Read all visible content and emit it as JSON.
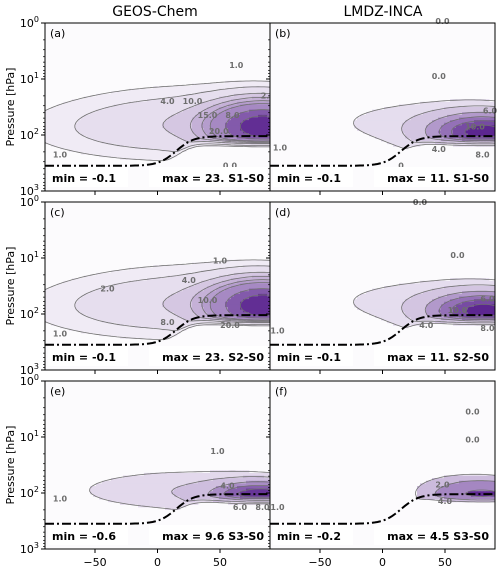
{
  "chart_data": {
    "type": "contour",
    "column_titles": [
      "GEOS-Chem",
      "LMDZ-INCA"
    ],
    "ylabel": "Pressure [hPa]",
    "yscale": "log",
    "ylim_hpa": [
      1000,
      1
    ],
    "y_ticks": [
      {
        "base": "10",
        "exp": "0",
        "value": 1
      },
      {
        "base": "10",
        "exp": "1",
        "value": 10
      },
      {
        "base": "10",
        "exp": "2",
        "value": 100
      },
      {
        "base": "10",
        "exp": "3",
        "value": 1000
      }
    ],
    "xlim": [
      -90,
      90
    ],
    "x_ticks": [
      {
        "label": "−50",
        "value": -50
      },
      {
        "label": "0",
        "value": 0
      },
      {
        "label": "50",
        "value": 50
      }
    ],
    "colors": {
      "fill_dark": "#3f007d",
      "fill_light": "#fcfbfd",
      "contour_line": "#707070",
      "tropopause": "#000000"
    },
    "panels": [
      {
        "tag": "(a)",
        "model": "GEOS-Chem",
        "min_label": "min = -0.1",
        "max_label": "max = 23. S1-S0",
        "max": 23,
        "min": -0.1,
        "contour_labels": [
          "1.0",
          "2.",
          "4.0",
          "10.0",
          "15.0",
          "20.0",
          "8.0",
          "1.0",
          "0.0"
        ]
      },
      {
        "tag": "(b)",
        "model": "LMDZ-INCA",
        "min_label": "min = -0.1",
        "max_label": "max = 11. S1-S0",
        "max": 11,
        "min": -0.1,
        "contour_labels": [
          "0.0",
          "0.0",
          "1.0",
          "10.0",
          "6.0",
          "4.0",
          "8.0",
          "0."
        ]
      },
      {
        "tag": "(c)",
        "model": "GEOS-Chem",
        "min_label": "min = -0.1",
        "max_label": "max = 23. S2-S0",
        "max": 23,
        "min": -0.1,
        "contour_labels": [
          "1.0",
          "2.0",
          "4.0",
          "10.0",
          "8.0",
          "20.0",
          "1.0",
          "0.0"
        ]
      },
      {
        "tag": "(d)",
        "model": "LMDZ-INCA",
        "min_label": "min = -0.1",
        "max_label": "max = 11. S2-S0",
        "max": 11,
        "min": -0.1,
        "contour_labels": [
          "0.0",
          "0.0",
          "1.0",
          "10.0",
          "6.0",
          "8.0",
          "4.0"
        ]
      },
      {
        "tag": "(e)",
        "model": "GEOS-Chem",
        "min_label": "min = -0.6",
        "max_label": "max = 9.6 S3-S0",
        "max": 9.6,
        "min": -0.6,
        "contour_labels": [
          "1.0",
          "1.0",
          "4.0",
          "6.0",
          "8.0"
        ]
      },
      {
        "tag": "(f)",
        "model": "LMDZ-INCA",
        "min_label": "min = -0.2",
        "max_label": "max = 4.5 S3-S0",
        "max": 4.5,
        "min": -0.2,
        "contour_labels": [
          "0.0",
          "0.0",
          "2.0",
          "1.0",
          "4.0"
        ]
      }
    ]
  }
}
